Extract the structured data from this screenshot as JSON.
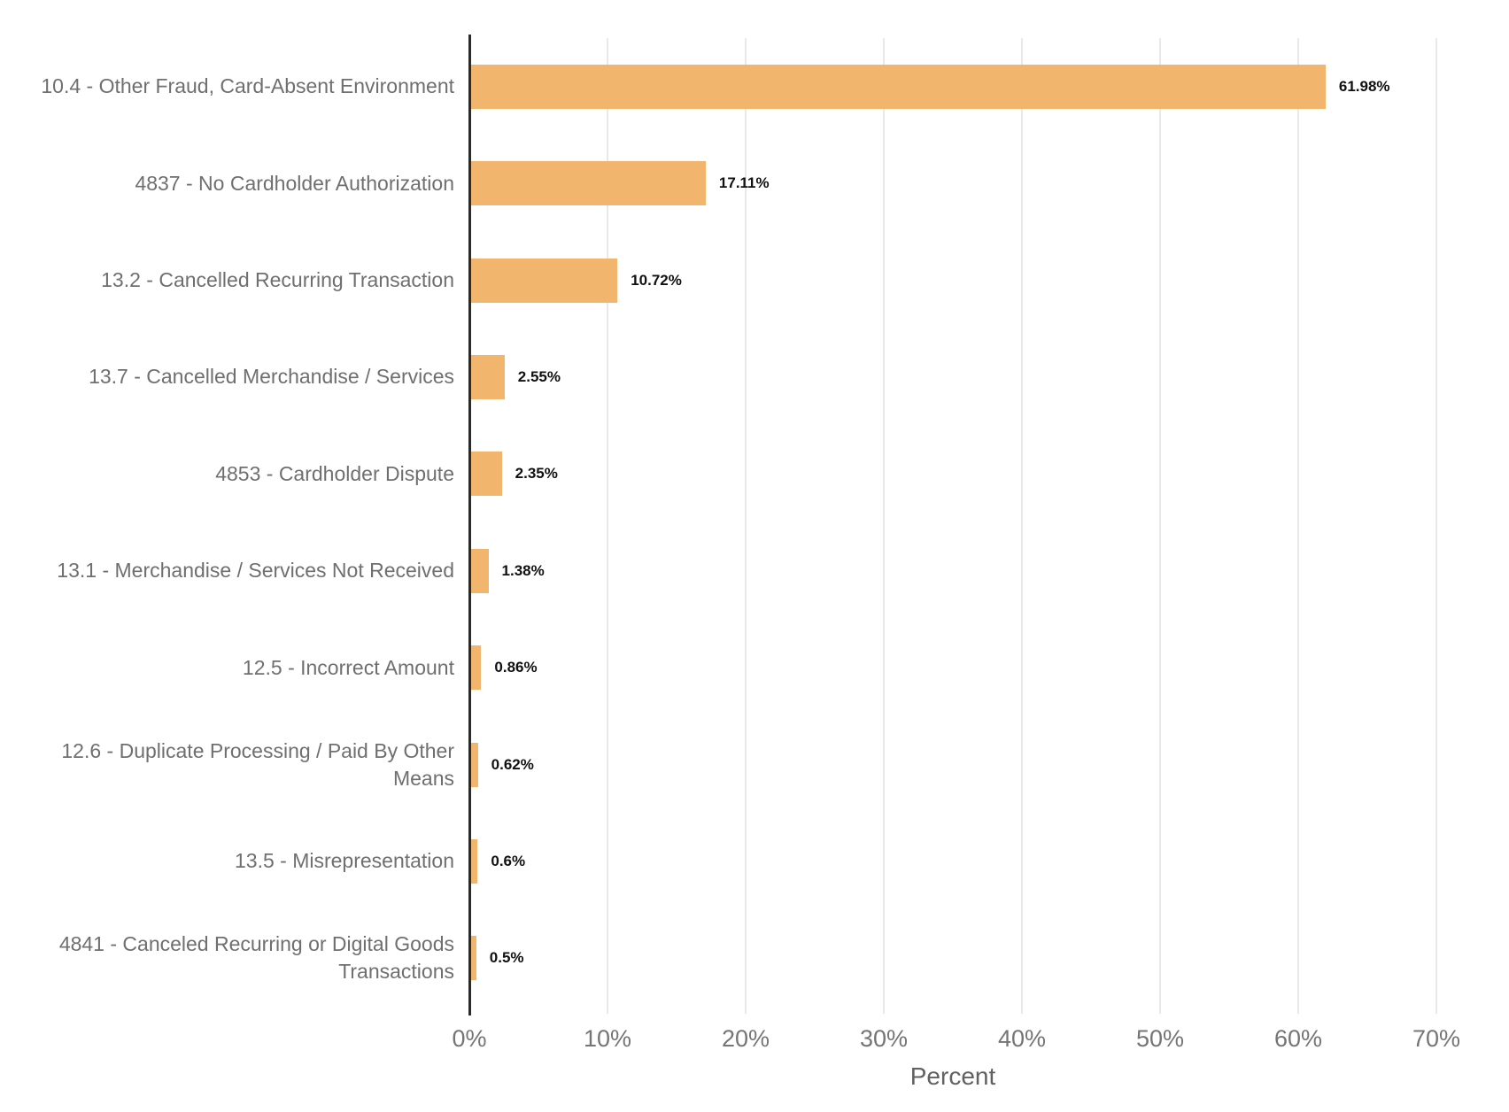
{
  "chart_data": {
    "type": "bar",
    "orientation": "horizontal",
    "title": "",
    "xlabel": "Percent",
    "ylabel": "",
    "xlim": [
      0,
      70
    ],
    "xticks": [
      "0%",
      "10%",
      "20%",
      "30%",
      "40%",
      "50%",
      "60%",
      "70%"
    ],
    "grid": "vertical",
    "legend": "none",
    "categories": [
      "10.4 - Other Fraud, Card-Absent Environment",
      "4837 - No Cardholder Authorization",
      "13.2 - Cancelled Recurring Transaction",
      "13.7 - Cancelled Merchandise / Services",
      "4853 - Cardholder Dispute",
      "13.1 - Merchandise / Services Not Received",
      "12.5 - Incorrect Amount",
      "12.6 - Duplicate Processing / Paid By Other Means",
      "13.5 - Misrepresentation",
      "4841 - Canceled Recurring or Digital Goods Transactions"
    ],
    "values": [
      61.98,
      17.11,
      10.72,
      2.55,
      2.35,
      1.38,
      0.86,
      0.62,
      0.6,
      0.5
    ],
    "value_labels": [
      "61.98%",
      "17.11%",
      "10.72%",
      "2.55%",
      "2.35%",
      "1.38%",
      "0.86%",
      "0.62%",
      "0.6%",
      "0.5%"
    ],
    "colors": {
      "bar_color": "#F2B56D",
      "value_label_color": "#111111",
      "category_label_color": "#6F6F6F",
      "tick_label_color": "#757575",
      "axis_line_color": "#2B2B2B",
      "gridline_color": "#E9E9E9"
    }
  }
}
